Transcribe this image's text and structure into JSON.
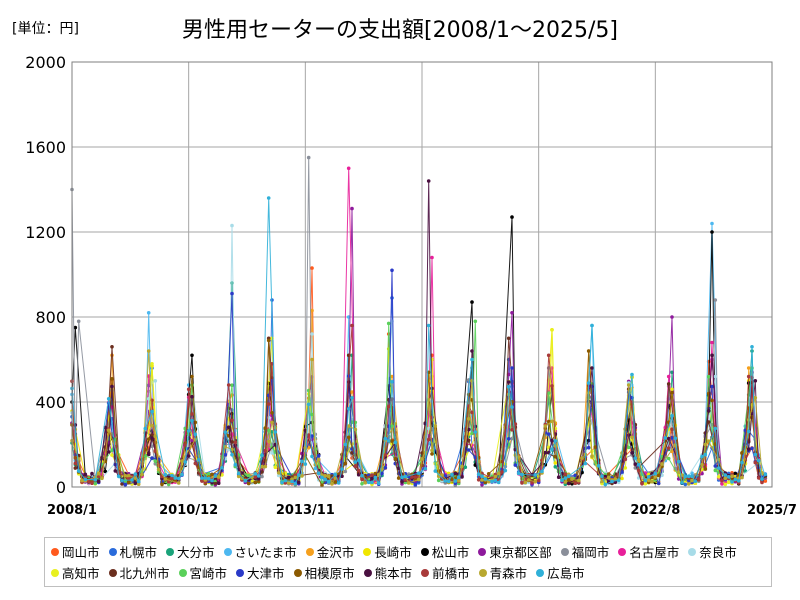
{
  "unit_label": "[単位：円]",
  "chart_data": {
    "type": "line",
    "title": "男性用セーターの支出額[2008/1～2025/5]",
    "xlabel": "",
    "ylabel": "",
    "ylim": [
      0,
      2000
    ],
    "y_ticks": [
      0,
      400,
      800,
      1200,
      1600,
      2000
    ],
    "x_ticks": [
      "2008/1",
      "2010/12",
      "2013/11",
      "2016/10",
      "2019/9",
      "2022/8",
      "2025/7"
    ],
    "x_range": [
      "2008/1",
      "2025/7"
    ],
    "grid": true,
    "legend_position": "bottom",
    "series": [
      {
        "name": "岡山市",
        "color": "#ff5a1e",
        "peaks": [
          [
            "2008/1",
            300
          ],
          [
            "2014/1",
            1030
          ],
          [
            "2015/12",
            720
          ],
          [
            "2017/1",
            620
          ],
          [
            "2023/12",
            590
          ]
        ]
      },
      {
        "name": "札幌市",
        "color": "#2a6bdb",
        "peaks": [
          [
            "2010/1",
            560
          ],
          [
            "2013/1",
            880
          ],
          [
            "2016/1",
            890
          ],
          [
            "2018/12",
            600
          ],
          [
            "2022/1",
            400
          ]
        ]
      },
      {
        "name": "大分市",
        "color": "#1aa37a",
        "peaks": [
          [
            "2012/1",
            960
          ],
          [
            "2015/1",
            620
          ],
          [
            "2018/1",
            560
          ],
          [
            "2023/1",
            540
          ],
          [
            "2025/1",
            640
          ]
        ]
      },
      {
        "name": "さいたま市",
        "color": "#4db8f0",
        "peaks": [
          [
            "2009/12",
            820
          ],
          [
            "2014/12",
            800
          ],
          [
            "2019/12",
            560
          ],
          [
            "2021/1",
            760
          ],
          [
            "2024/1",
            1240
          ]
        ]
      },
      {
        "name": "金沢市",
        "color": "#f5a01e",
        "peaks": [
          [
            "2009/1",
            620
          ],
          [
            "2014/1",
            830
          ],
          [
            "2017/1",
            520
          ],
          [
            "2020/12",
            640
          ],
          [
            "2024/12",
            560
          ]
        ]
      },
      {
        "name": "長崎市",
        "color": "#f0e600",
        "peaks": [
          [
            "2010/1",
            570
          ],
          [
            "2015/12",
            650
          ],
          [
            "2020/1",
            740
          ],
          [
            "2022/12",
            420
          ],
          [
            "2024/12",
            500
          ]
        ]
      },
      {
        "name": "松山市",
        "color": "#000000",
        "peaks": [
          [
            "2008/2",
            750
          ],
          [
            "2011/1",
            620
          ],
          [
            "2018/1",
            870
          ],
          [
            "2019/1",
            1270
          ],
          [
            "2024/1",
            1200
          ]
        ]
      },
      {
        "name": "東京都区部",
        "color": "#8e1a9c",
        "peaks": [
          [
            "2015/1",
            1310
          ],
          [
            "2019/1",
            820
          ],
          [
            "2023/1",
            800
          ],
          [
            "2024/1",
            600
          ],
          [
            "2025/1",
            540
          ]
        ]
      },
      {
        "name": "福岡市",
        "color": "#8a8f9a",
        "peaks": [
          [
            "2008/1",
            1400
          ],
          [
            "2008/3",
            780
          ],
          [
            "2013/12",
            1550
          ],
          [
            "2019/12",
            560
          ],
          [
            "2024/2",
            880
          ]
        ]
      },
      {
        "name": "名古屋市",
        "color": "#e8209a",
        "peaks": [
          [
            "2014/12",
            1500
          ],
          [
            "2017/1",
            1080
          ],
          [
            "2020/1",
            560
          ],
          [
            "2022/12",
            520
          ],
          [
            "2024/1",
            680
          ]
        ]
      },
      {
        "name": "奈良市",
        "color": "#a8dce8",
        "peaks": [
          [
            "2010/2",
            500
          ],
          [
            "2012/1",
            1230
          ],
          [
            "2014/1",
            720
          ],
          [
            "2016/1",
            780
          ],
          [
            "2024/2",
            520
          ]
        ]
      },
      {
        "name": "高知市",
        "color": "#e8f020",
        "peaks": [
          [
            "2010/1",
            580
          ],
          [
            "2013/1",
            700
          ],
          [
            "2017/1",
            600
          ],
          [
            "2020/1",
            740
          ],
          [
            "2023/1",
            460
          ]
        ]
      },
      {
        "name": "北九州市",
        "color": "#6b2e1e",
        "peaks": [
          [
            "2009/1",
            660
          ],
          [
            "2012/12",
            700
          ],
          [
            "2014/12",
            620
          ],
          [
            "2018/12",
            700
          ],
          [
            "2021/12",
            460
          ]
        ]
      },
      {
        "name": "宮崎市",
        "color": "#5ad05a",
        "peaks": [
          [
            "2011/1",
            480
          ],
          [
            "2015/12",
            770
          ],
          [
            "2018/2",
            780
          ],
          [
            "2020/12",
            420
          ],
          [
            "2025/1",
            560
          ]
        ]
      },
      {
        "name": "大津市",
        "color": "#2a3ac8",
        "peaks": [
          [
            "2012/1",
            910
          ],
          [
            "2013/1",
            500
          ],
          [
            "2016/1",
            1020
          ],
          [
            "2019/1",
            560
          ],
          [
            "2022/1",
            420
          ]
        ]
      },
      {
        "name": "相模原市",
        "color": "#8b5a00",
        "peaks": [
          [
            "2011/1",
            520
          ],
          [
            "2012/12",
            690
          ],
          [
            "2016/12",
            540
          ],
          [
            "2020/12",
            640
          ],
          [
            "2023/12",
            440
          ]
        ]
      },
      {
        "name": "熊本市",
        "color": "#4a1040",
        "peaks": [
          [
            "2016/12",
            1440
          ],
          [
            "2018/1",
            640
          ],
          [
            "2021/1",
            560
          ],
          [
            "2024/1",
            620
          ],
          [
            "2025/2",
            500
          ]
        ]
      },
      {
        "name": "前橋市",
        "color": "#a83a3a",
        "peaks": [
          [
            "2013/1",
            580
          ],
          [
            "2015/1",
            760
          ],
          [
            "2019/12",
            620
          ],
          [
            "2022/1",
            400
          ],
          [
            "2024/12",
            520
          ]
        ]
      },
      {
        "name": "青森市",
        "color": "#b8a830",
        "peaks": [
          [
            "2009/12",
            640
          ],
          [
            "2014/1",
            600
          ],
          [
            "2018/1",
            500
          ],
          [
            "2021/12",
            480
          ],
          [
            "2025/2",
            420
          ]
        ]
      },
      {
        "name": "広島市",
        "color": "#30b0d8",
        "peaks": [
          [
            "2012/12",
            1360
          ],
          [
            "2016/12",
            760
          ],
          [
            "2018/1",
            600
          ],
          [
            "2021/1",
            760
          ],
          [
            "2025/1",
            660
          ]
        ]
      }
    ]
  }
}
